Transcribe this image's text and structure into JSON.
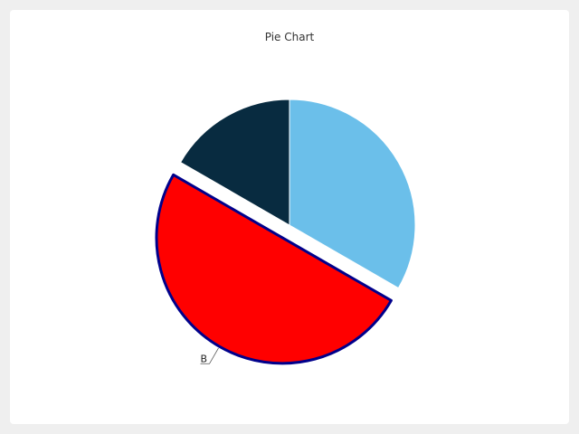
{
  "chart_data": {
    "type": "pie",
    "title": "Pie Chart",
    "slices": [
      {
        "label": "",
        "value": 1,
        "color": "#6bbfea",
        "exploded": false,
        "highlighted": false
      },
      {
        "label": "B",
        "value": 1.5,
        "color": "#ff0000",
        "exploded": true,
        "highlighted": true,
        "stroke": "#00008b"
      },
      {
        "label": "",
        "value": 0.5,
        "color": "#082b40",
        "exploded": false,
        "highlighted": false
      }
    ],
    "start_angle_deg": 0,
    "direction": "clockwise"
  }
}
